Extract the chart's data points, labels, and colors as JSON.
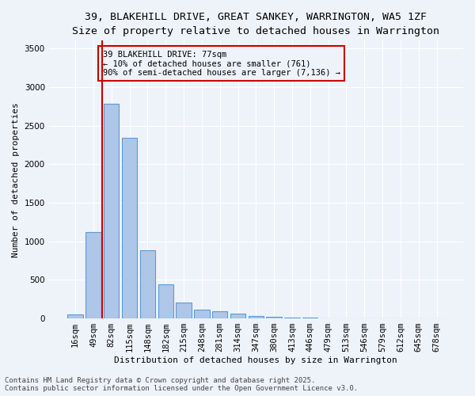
{
  "title_line1": "39, BLAKEHILL DRIVE, GREAT SANKEY, WARRINGTON, WA5 1ZF",
  "title_line2": "Size of property relative to detached houses in Warrington",
  "xlabel": "Distribution of detached houses by size in Warrington",
  "ylabel": "Number of detached properties",
  "categories": [
    "16sqm",
    "49sqm",
    "82sqm",
    "115sqm",
    "148sqm",
    "182sqm",
    "215sqm",
    "248sqm",
    "281sqm",
    "314sqm",
    "347sqm",
    "380sqm",
    "413sqm",
    "446sqm",
    "479sqm",
    "513sqm",
    "546sqm",
    "579sqm",
    "612sqm",
    "645sqm",
    "678sqm"
  ],
  "values": [
    50,
    1120,
    2780,
    2340,
    880,
    440,
    205,
    110,
    90,
    65,
    35,
    25,
    15,
    8,
    3,
    2,
    1,
    0,
    0,
    0,
    0
  ],
  "bar_color": "#aec6e8",
  "bar_edge_color": "#5b9bd5",
  "vline_color": "#cc0000",
  "annotation_box_text": "39 BLAKEHILL DRIVE: 77sqm\n← 10% of detached houses are smaller (761)\n90% of semi-detached houses are larger (7,136) →",
  "box_edge_color": "#cc0000",
  "ylim": [
    0,
    3600
  ],
  "yticks": [
    0,
    500,
    1000,
    1500,
    2000,
    2500,
    3000,
    3500
  ],
  "bg_color": "#eef3fa",
  "grid_color": "#ffffff",
  "footer_line1": "Contains HM Land Registry data © Crown copyright and database right 2025.",
  "footer_line2": "Contains public sector information licensed under the Open Government Licence v3.0.",
  "title_fontsize": 9.5,
  "subtitle_fontsize": 8.5,
  "axis_label_fontsize": 8,
  "tick_fontsize": 7.5,
  "annotation_fontsize": 7.5,
  "footer_fontsize": 6.5
}
